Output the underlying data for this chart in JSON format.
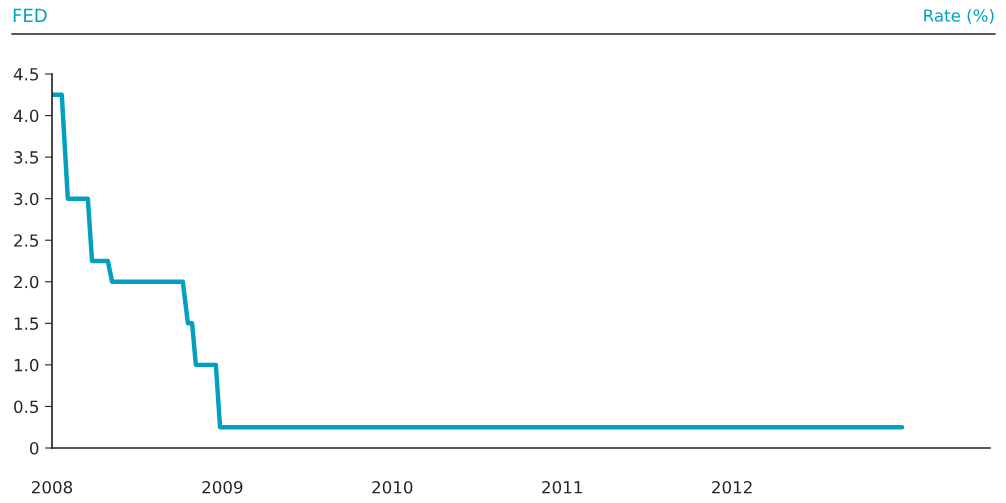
{
  "chart_data": {
    "type": "line",
    "title": "FED",
    "ylabel": "Rate (%)",
    "x": [
      "2008-01-01",
      "2008-01-22",
      "2008-02-04",
      "2008-03-18",
      "2008-03-27",
      "2008-04-30",
      "2008-05-09",
      "2008-10-08",
      "2008-10-19",
      "2008-10-28",
      "2008-11-05",
      "2008-12-18",
      "2008-12-27",
      "2012-12-31"
    ],
    "series": [
      {
        "color": "#00a0be",
        "values": [
          4.25,
          4.25,
          3.0,
          3.0,
          2.25,
          2.25,
          2.0,
          2.0,
          1.5,
          1.5,
          1.0,
          1.0,
          0.25,
          0.25
        ]
      }
    ],
    "xlim": [
      "2008-01-01",
      "2013-07-08"
    ],
    "xticks": [
      {
        "value": "2008-01-01",
        "label": "2008"
      },
      {
        "value": "2009-01-01",
        "label": "2009"
      },
      {
        "value": "2010-01-01",
        "label": "2010"
      },
      {
        "value": "2011-01-01",
        "label": "2011"
      },
      {
        "value": "2012-01-01",
        "label": "2012"
      }
    ],
    "ylim": [
      0,
      4.5
    ],
    "yticks": [
      0,
      {
        "value": 0.5,
        "label": "0.5"
      },
      {
        "value": 1.0,
        "label": "1.0"
      },
      {
        "value": 1.5,
        "label": "1.5"
      },
      {
        "value": 2.0,
        "label": "2.0"
      },
      {
        "value": 2.5,
        "label": "2.5"
      },
      {
        "value": 3.0,
        "label": "3.0"
      },
      {
        "value": 3.5,
        "label": "3.5"
      },
      {
        "value": 4.0,
        "label": "4.0"
      },
      {
        "value": 4.5,
        "label": "4.5"
      }
    ],
    "grid": false,
    "legend": false,
    "marker": "none",
    "line_style": "solid"
  }
}
